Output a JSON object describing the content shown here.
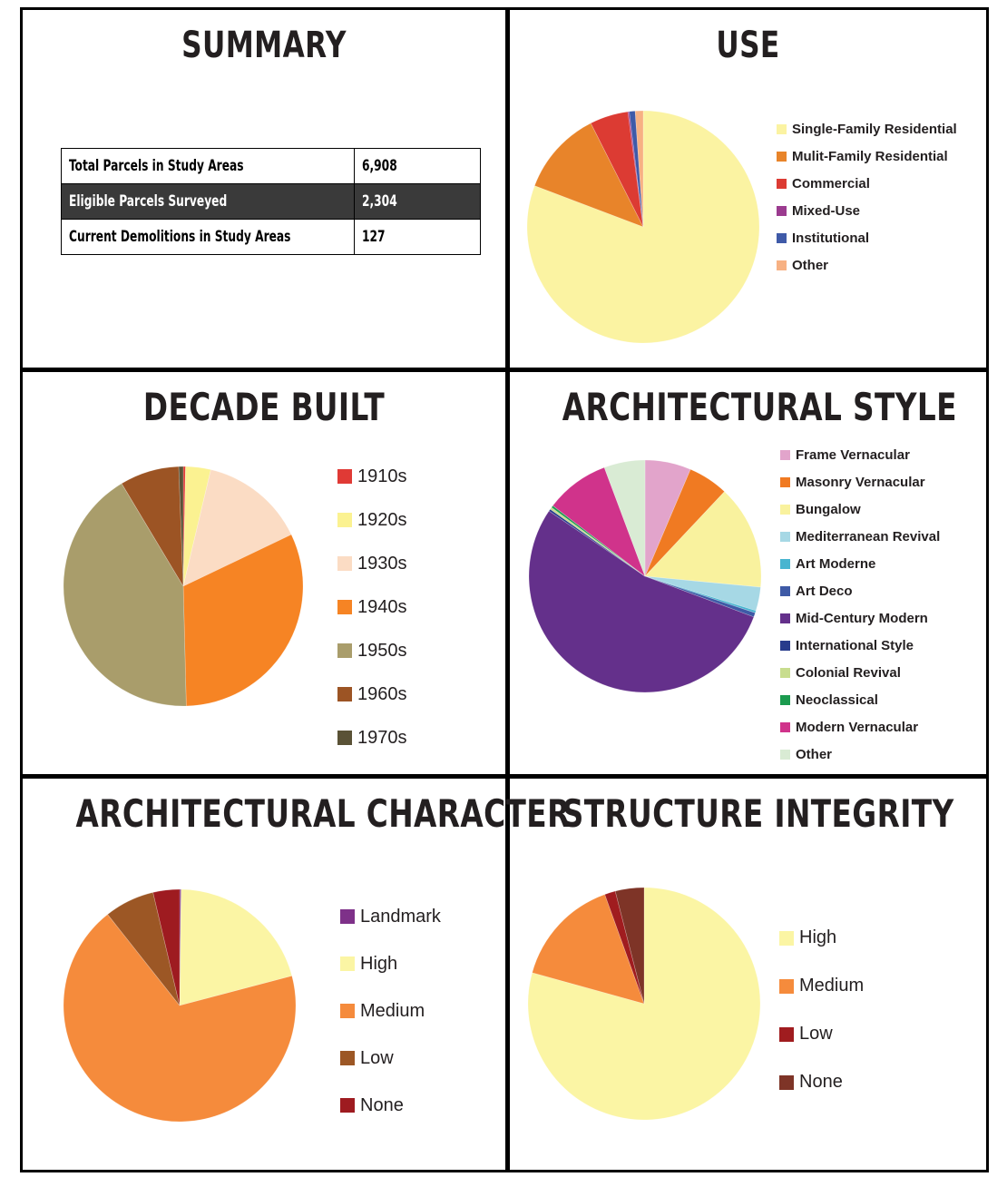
{
  "panels": {
    "summary": {
      "title": "SUMMARY",
      "rows": [
        {
          "label": "Total Parcels in Study Areas",
          "value": "6,908"
        },
        {
          "label": "Eligible Parcels Surveyed",
          "value": "2,304"
        },
        {
          "label": "Current Demolitions in Study Areas",
          "value": "127"
        }
      ]
    },
    "use": {
      "title": "USE"
    },
    "decade": {
      "title": "DECADE BUILT"
    },
    "style": {
      "title": "ARCHITECTURAL STYLE"
    },
    "character": {
      "title": "ARCHITECTURAL CHARACTER"
    },
    "integrity": {
      "title": "STRUCTURE INTEGRITY"
    }
  },
  "chart_data": [
    {
      "id": "use",
      "type": "pie",
      "title": "USE",
      "start_angle_deg": 0,
      "categories": [
        "Single-Family Residential",
        "Mulit-Family Residential",
        "Commercial",
        "Mixed-Use",
        "Institutional",
        "Other"
      ],
      "values": [
        80.2,
        11.7,
        5.3,
        0.2,
        0.8,
        1.1
      ],
      "colors": [
        "#fbf3a2",
        "#e8842a",
        "#dc3b33",
        "#9b3b8f",
        "#3f5aa8",
        "#f7b183"
      ]
    },
    {
      "id": "decade",
      "type": "pie",
      "title": "DECADE BUILT",
      "start_angle_deg": 0,
      "categories": [
        "1910s",
        "1920s",
        "1930s",
        "1940s",
        "1950s",
        "1960s",
        "1970s"
      ],
      "values": [
        0.3,
        3.4,
        14.2,
        31.7,
        41.8,
        8.0,
        0.6
      ],
      "colors": [
        "#e03a35",
        "#fbf291",
        "#fbdcc4",
        "#f68424",
        "#a99d6b",
        "#9c5424",
        "#5a5236"
      ]
    },
    {
      "id": "style",
      "type": "pie",
      "title": "ARCHITECTURAL STYLE",
      "start_angle_deg": 0,
      "categories": [
        "Frame Vernacular",
        "Masonry Vernacular",
        "Bungalow",
        "Mediterranean Revival",
        "Art Moderne",
        "Art Deco",
        "Mid-Century Modern",
        "International Style",
        "Colonial Revival",
        "Neoclassical",
        "Modern Vernacular",
        "Other"
      ],
      "values": [
        6.4,
        5.6,
        14.5,
        3.3,
        0.3,
        0.6,
        53.8,
        0.3,
        0.3,
        0.3,
        8.9,
        5.7
      ],
      "colors": [
        "#e2a4cb",
        "#f07a22",
        "#f9f29e",
        "#a6d8e5",
        "#48b5d0",
        "#3e5aa6",
        "#64308b",
        "#283b8c",
        "#c8dd8e",
        "#1b9b4f",
        "#d0338b",
        "#d9ebd4"
      ]
    },
    {
      "id": "character",
      "type": "pie",
      "title": "ARCHITECTURAL CHARACTER",
      "start_angle_deg": 0,
      "categories": [
        "Landmark",
        "High",
        "Medium",
        "Low",
        "None"
      ],
      "values": [
        0.2,
        20.8,
        68.8,
        7.0,
        3.7
      ],
      "colors": [
        "#7e3189",
        "#fbf5a4",
        "#f58b3c",
        "#9c5725",
        "#9e1b20"
      ]
    },
    {
      "id": "integrity",
      "type": "pie",
      "title": "STRUCTURE INTEGRITY",
      "start_angle_deg": 0,
      "categories": [
        "High",
        "Medium",
        "Low",
        "None"
      ],
      "values": [
        79.3,
        15.2,
        1.5,
        4.0
      ],
      "colors": [
        "#fbf5a4",
        "#f58b3c",
        "#a01c1f",
        "#7e3427"
      ]
    }
  ]
}
